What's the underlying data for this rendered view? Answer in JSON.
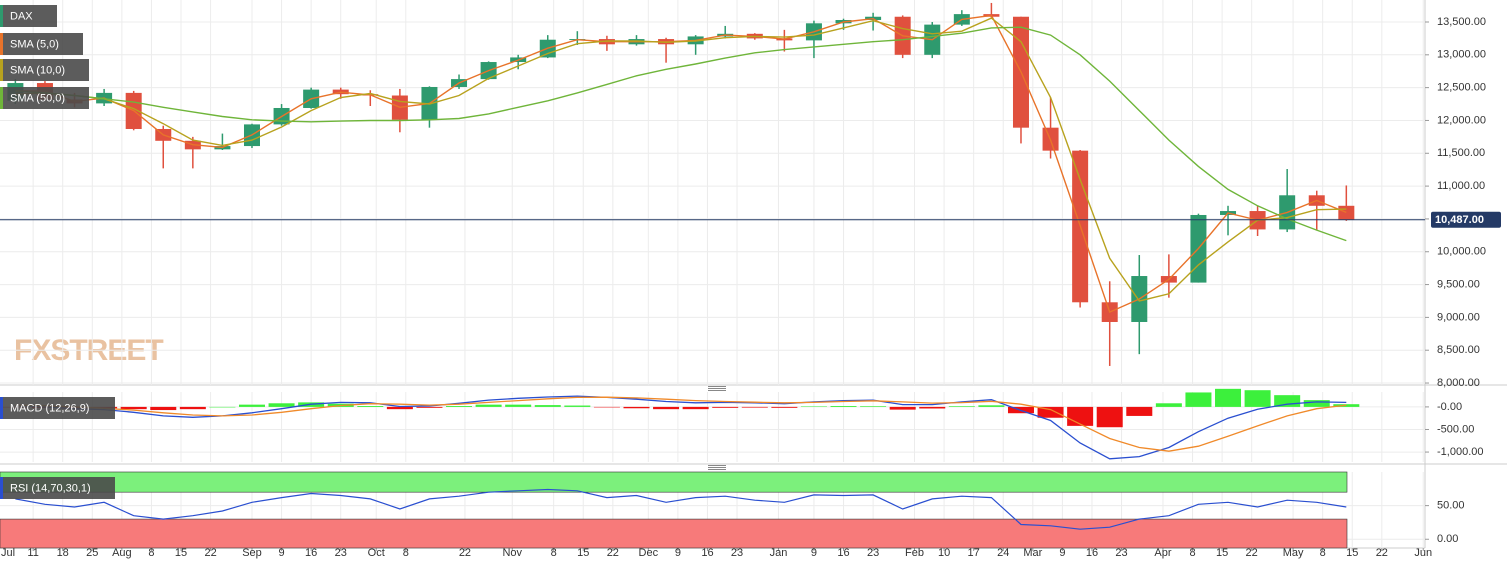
{
  "chart_data": [
    {
      "type": "candlestick",
      "name": "DAX",
      "x": [
        5,
        10,
        15,
        20,
        25,
        30,
        35,
        40,
        45,
        50,
        55,
        60,
        65,
        70,
        75,
        80,
        85,
        90,
        95,
        100,
        105,
        110,
        115,
        120,
        125,
        130,
        135,
        140,
        145,
        150,
        155,
        160,
        165,
        170,
        175,
        180,
        185,
        190,
        195,
        200,
        205,
        210,
        215,
        220,
        225,
        230
      ],
      "open": [
        12300,
        12570,
        12320,
        12260,
        12420,
        11870,
        11690,
        11560,
        11610,
        11940,
        12190,
        12470,
        12400,
        12380,
        12010,
        12510,
        12630,
        12890,
        12960,
        13230,
        13240,
        13160,
        13240,
        13160,
        13280,
        13320,
        13250,
        13220,
        13480,
        13530,
        13580,
        13000,
        13460,
        13620,
        13580,
        11890,
        11540,
        9230,
        8930,
        9630,
        9530,
        10560,
        10620,
        10340,
        10860,
        10700
      ],
      "high": [
        12630,
        12600,
        12420,
        12480,
        12450,
        11920,
        11750,
        11800,
        11950,
        12250,
        12500,
        12500,
        12460,
        12480,
        12520,
        12700,
        12900,
        13000,
        13300,
        13360,
        13290,
        13300,
        13260,
        13300,
        13440,
        13330,
        13380,
        13520,
        13550,
        13640,
        13600,
        13500,
        13680,
        13790,
        13580,
        12350,
        11550,
        9550,
        9950,
        9960,
        10580,
        10700,
        10700,
        11260,
        10930,
        11010
      ],
      "low": [
        12250,
        12300,
        12200,
        12220,
        11850,
        11270,
        11270,
        11550,
        11580,
        11920,
        12180,
        12330,
        12220,
        11820,
        11890,
        12480,
        12620,
        12780,
        12950,
        13150,
        13060,
        13140,
        12880,
        13000,
        13250,
        13230,
        13050,
        12950,
        13380,
        13370,
        12950,
        12950,
        13440,
        13570,
        11650,
        11420,
        9150,
        8260,
        8440,
        9300,
        9530,
        10250,
        10240,
        10300,
        10330,
        10470
      ],
      "close": [
        12570,
        12320,
        12260,
        12420,
        11870,
        11690,
        11560,
        11610,
        11940,
        12190,
        12470,
        12400,
        12380,
        12010,
        12510,
        12630,
        12890,
        12960,
        13230,
        13240,
        13160,
        13240,
        13160,
        13280,
        13320,
        13250,
        13220,
        13480,
        13530,
        13580,
        13000,
        13460,
        13620,
        13580,
        11890,
        11540,
        9230,
        8930,
        9630,
        9530,
        10560,
        10620,
        10340,
        10860,
        10700,
        10487
      ],
      "rise_color": "#2e9a6e",
      "fall_color": "#e0503e",
      "series": [
        {
          "name": "SMA (5,0)",
          "color": "#e8732a",
          "values": [
            12450,
            12450,
            12290,
            12340,
            12150,
            11780,
            11630,
            11590,
            11780,
            12060,
            12330,
            12430,
            12390,
            12200,
            12260,
            12570,
            12760,
            12920,
            13100,
            13230,
            13200,
            13200,
            13200,
            13220,
            13300,
            13280,
            13240,
            13350,
            13500,
            13550,
            13290,
            13230,
            13540,
            13600,
            12740,
            11700,
            10400,
            9080,
            9280,
            9580,
            10050,
            10590,
            10480,
            10600,
            10780,
            10600
          ]
        },
        {
          "name": "SMA (10,0)",
          "color": "#b8a21e",
          "values": [
            12400,
            12420,
            12380,
            12330,
            12180,
            11950,
            11700,
            11620,
            11700,
            11900,
            12150,
            12350,
            12410,
            12290,
            12250,
            12380,
            12640,
            12830,
            13020,
            13170,
            13210,
            13210,
            13190,
            13210,
            13260,
            13280,
            13270,
            13300,
            13410,
            13520,
            13400,
            13320,
            13360,
            13560,
            13200,
            12350,
            11100,
            9900,
            9250,
            9360,
            9800,
            10150,
            10480,
            10520,
            10640,
            10650
          ]
        },
        {
          "name": "SMA (50,0)",
          "color": "#6fb53a",
          "values": [
            12450,
            12420,
            12380,
            12330,
            12280,
            12200,
            12130,
            12060,
            12010,
            11990,
            11980,
            11990,
            12000,
            12000,
            12010,
            12030,
            12100,
            12200,
            12300,
            12420,
            12550,
            12680,
            12780,
            12860,
            12950,
            13030,
            13080,
            13120,
            13160,
            13200,
            13230,
            13280,
            13330,
            13410,
            13420,
            13300,
            13000,
            12600,
            12150,
            11700,
            11300,
            10950,
            10700,
            10500,
            10330,
            10170
          ]
        }
      ],
      "xlim": [
        2.4,
        243.3
      ],
      "ylim": [
        7970,
        13835
      ],
      "yticks": [
        {
          "value": 8000,
          "label": "8,000.00"
        },
        {
          "value": 8500,
          "label": "8,500.00"
        },
        {
          "value": 9000,
          "label": "9,000.00"
        },
        {
          "value": 9500,
          "label": "9,500.00"
        },
        {
          "value": 10000,
          "label": "10,000.00"
        },
        {
          "value": 10500,
          "label": "10,500.00"
        },
        {
          "value": 11000,
          "label": "11,000.00"
        },
        {
          "value": 11500,
          "label": "11,500.00"
        },
        {
          "value": 12000,
          "label": "12,000.00"
        },
        {
          "value": 12500,
          "label": "12,500.00"
        },
        {
          "value": 13000,
          "label": "13,000.00"
        },
        {
          "value": 13500,
          "label": "13,500.00"
        }
      ],
      "last": {
        "value": 10487,
        "label": "10,487.00"
      },
      "last_color": "#243a66",
      "watermark": "FXSTREET",
      "grid": true
    },
    {
      "type": "macd",
      "title": "MACD (12,26,9)",
      "x": [
        5,
        10,
        15,
        20,
        25,
        30,
        35,
        40,
        45,
        50,
        55,
        60,
        65,
        70,
        75,
        80,
        85,
        90,
        95,
        100,
        105,
        110,
        115,
        120,
        125,
        130,
        135,
        140,
        145,
        150,
        155,
        160,
        165,
        170,
        175,
        180,
        185,
        190,
        195,
        200,
        205,
        210,
        215,
        220,
        225,
        230
      ],
      "macd": {
        "color": "#2a4fd0",
        "values": [
          30,
          0,
          -40,
          -60,
          -120,
          -200,
          -230,
          -200,
          -130,
          -40,
          60,
          100,
          90,
          10,
          20,
          80,
          150,
          190,
          220,
          240,
          210,
          170,
          120,
          90,
          100,
          90,
          70,
          110,
          140,
          150,
          50,
          50,
          110,
          160,
          -80,
          -300,
          -800,
          -1150,
          -1100,
          -900,
          -550,
          -250,
          -50,
          60,
          110,
          100
        ]
      },
      "signal": {
        "color": "#f08a2a",
        "values": [
          40,
          25,
          0,
          -30,
          -70,
          -130,
          -180,
          -200,
          -180,
          -120,
          -40,
          30,
          70,
          60,
          40,
          60,
          100,
          140,
          180,
          210,
          215,
          200,
          170,
          140,
          120,
          105,
          90,
          100,
          120,
          135,
          110,
          85,
          95,
          125,
          60,
          -60,
          -380,
          -700,
          -900,
          -980,
          -870,
          -650,
          -420,
          -200,
          -40,
          40
        ]
      },
      "histogram": {
        "positive_color": "#3cf03c",
        "negative_color": "#ee1111",
        "values": [
          -10,
          -25,
          -40,
          -30,
          -50,
          -70,
          -50,
          0,
          50,
          80,
          100,
          70,
          20,
          -50,
          -20,
          20,
          50,
          50,
          40,
          30,
          -5,
          -30,
          -50,
          -50,
          -20,
          -15,
          -20,
          10,
          20,
          15,
          -60,
          -35,
          15,
          35,
          -140,
          -240,
          -420,
          -450,
          -200,
          80,
          320,
          400,
          370,
          260,
          150,
          60
        ]
      },
      "xlim": [
        2.4,
        243.3
      ],
      "ylim": [
        -1220,
        330
      ],
      "yticks": [
        {
          "value": 0,
          "label": "-0.00"
        },
        {
          "value": -500,
          "label": "-500.00"
        },
        {
          "value": -1000,
          "label": "-1,000.00"
        }
      ],
      "grid": true
    },
    {
      "type": "rsi",
      "title": "RSI (14,70,30,1)",
      "x": [
        5,
        10,
        15,
        20,
        25,
        30,
        35,
        40,
        45,
        50,
        55,
        60,
        65,
        70,
        75,
        80,
        85,
        90,
        95,
        100,
        105,
        110,
        115,
        120,
        125,
        130,
        135,
        140,
        145,
        150,
        155,
        160,
        165,
        170,
        175,
        180,
        185,
        190,
        195,
        200,
        205,
        210,
        215,
        220,
        225,
        230
      ],
      "values": [
        60,
        52,
        48,
        55,
        35,
        30,
        35,
        42,
        55,
        62,
        68,
        65,
        60,
        45,
        60,
        64,
        70,
        72,
        74,
        72,
        62,
        65,
        55,
        62,
        64,
        58,
        55,
        66,
        65,
        66,
        45,
        60,
        64,
        62,
        22,
        20,
        15,
        18,
        30,
        35,
        52,
        55,
        48,
        58,
        55,
        48
      ],
      "color": "#2a4fd0",
      "bands": {
        "upper": 70,
        "lower": 30,
        "upper_color": "#7cf07c",
        "lower_color": "#f77a7a"
      },
      "xlim": [
        2.4,
        243.3
      ],
      "ylim": [
        -13,
        100
      ],
      "yticks": [
        {
          "value": 50,
          "label": "50.00"
        },
        {
          "value": 0,
          "label": "0.00"
        }
      ],
      "xticks": [
        {
          "value": 0,
          "label": "Jul"
        },
        {
          "value": 8,
          "label": "11"
        },
        {
          "value": 13,
          "label": "18"
        },
        {
          "value": 18,
          "label": "25"
        },
        {
          "value": 23,
          "label": "Aug"
        },
        {
          "value": 28,
          "label": "8"
        },
        {
          "value": 33,
          "label": "15"
        },
        {
          "value": 38,
          "label": "22"
        },
        {
          "value": 45,
          "label": "Sep"
        },
        {
          "value": 50,
          "label": "9"
        },
        {
          "value": 55,
          "label": "16"
        },
        {
          "value": 60,
          "label": "23"
        },
        {
          "value": 66,
          "label": "Oct"
        },
        {
          "value": 71,
          "label": "8"
        },
        {
          "value": 81,
          "label": "22"
        },
        {
          "value": 89,
          "label": "Nov"
        },
        {
          "value": 96,
          "label": "8"
        },
        {
          "value": 101,
          "label": "15"
        },
        {
          "value": 106,
          "label": "22"
        },
        {
          "value": 112,
          "label": "Dec"
        },
        {
          "value": 117,
          "label": "9"
        },
        {
          "value": 122,
          "label": "16"
        },
        {
          "value": 127,
          "label": "23"
        },
        {
          "value": 134,
          "label": "Jan"
        },
        {
          "value": 140,
          "label": "9"
        },
        {
          "value": 145,
          "label": "16"
        },
        {
          "value": 150,
          "label": "23"
        },
        {
          "value": 157,
          "label": "Feb"
        },
        {
          "value": 162,
          "label": "10"
        },
        {
          "value": 167,
          "label": "17"
        },
        {
          "value": 172,
          "label": "24"
        },
        {
          "value": 177,
          "label": "Mar"
        },
        {
          "value": 182,
          "label": "9"
        },
        {
          "value": 187,
          "label": "16"
        },
        {
          "value": 192,
          "label": "23"
        },
        {
          "value": 199,
          "label": "Apr"
        },
        {
          "value": 204,
          "label": "8"
        },
        {
          "value": 209,
          "label": "15"
        },
        {
          "value": 214,
          "label": "22"
        },
        {
          "value": 221,
          "label": "May"
        },
        {
          "value": 226,
          "label": "8"
        },
        {
          "value": 231,
          "label": "15"
        },
        {
          "value": 236,
          "label": "22"
        },
        {
          "value": 243,
          "label": "Jun"
        }
      ],
      "grid": true
    }
  ]
}
